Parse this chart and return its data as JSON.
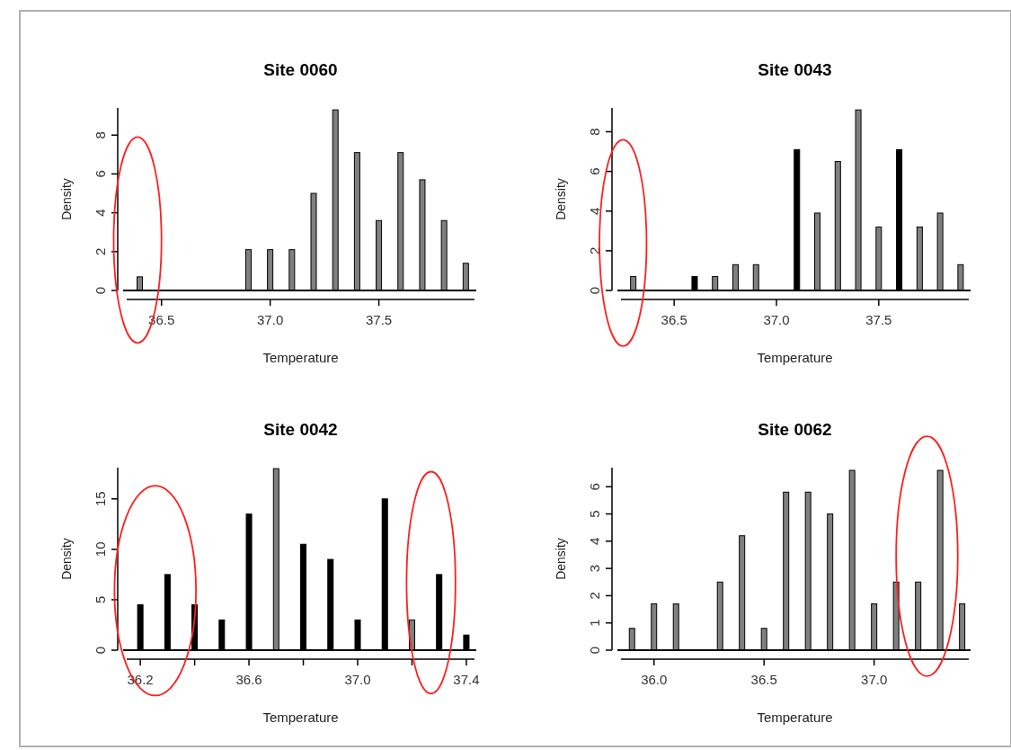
{
  "chart_data": [
    {
      "type": "bar",
      "title": "Site 0060",
      "xlabel": "Temperature",
      "ylabel": "Density",
      "x": [
        36.4,
        36.9,
        37.0,
        37.1,
        37.2,
        37.3,
        37.4,
        37.5,
        37.6,
        37.7,
        37.8,
        37.9
      ],
      "values": [
        0.7,
        2.1,
        2.1,
        2.1,
        5.0,
        9.3,
        7.1,
        3.6,
        7.1,
        5.7,
        3.6,
        1.4
      ],
      "color": "#808080",
      "xlim": [
        36.34,
        37.94
      ],
      "xticks": [
        {
          "value": 36.5,
          "label": "36.5"
        },
        {
          "value": 37.0,
          "label": "37.0"
        },
        {
          "value": 37.5,
          "label": "37.5"
        }
      ],
      "ylim": [
        0,
        9.4
      ],
      "yticks": [
        0,
        2,
        4,
        6,
        8
      ]
    },
    {
      "type": "bar",
      "title": "Site 0043",
      "xlabel": "Temperature",
      "ylabel": "Density",
      "x": [
        36.3,
        36.6,
        36.7,
        36.8,
        36.9,
        37.1,
        37.2,
        37.3,
        37.4,
        37.5,
        37.6,
        37.7,
        37.8,
        37.9
      ],
      "values": [
        0.7,
        0.7,
        0.7,
        1.3,
        1.3,
        7.1,
        3.9,
        6.5,
        9.1,
        3.2,
        7.1,
        3.2,
        3.9,
        1.3
      ],
      "colors": [
        "#808080",
        "#000000",
        "#808080",
        "#808080",
        "#808080",
        "#000000",
        "#808080",
        "#808080",
        "#808080",
        "#808080",
        "#000000",
        "#808080",
        "#808080",
        "#808080"
      ],
      "xlim": [
        36.24,
        37.94
      ],
      "xticks": [
        {
          "value": 36.5,
          "label": "36.5"
        },
        {
          "value": 37.0,
          "label": "37.0"
        },
        {
          "value": 37.5,
          "label": "37.5"
        }
      ],
      "ylim": [
        0,
        9.2
      ],
      "yticks": [
        0,
        2,
        4,
        6,
        8
      ]
    },
    {
      "type": "bar",
      "title": "Site 0042",
      "xlabel": "Temperature",
      "ylabel": "Density",
      "x": [
        36.2,
        36.3,
        36.4,
        36.5,
        36.6,
        36.7,
        36.8,
        36.9,
        37.0,
        37.1,
        37.2,
        37.3,
        37.4
      ],
      "values": [
        4.5,
        7.5,
        4.5,
        3.0,
        13.5,
        18.0,
        10.5,
        9.0,
        3.0,
        15.0,
        3.0,
        7.5,
        1.5
      ],
      "colors": [
        "#000000",
        "#000000",
        "#000000",
        "#000000",
        "#000000",
        "#808080",
        "#000000",
        "#000000",
        "#000000",
        "#000000",
        "#808080",
        "#000000",
        "#000000"
      ],
      "xlim": [
        36.15,
        37.43
      ],
      "xticks": [
        {
          "value": 36.2,
          "label": "36.2"
        },
        {
          "value": 36.4,
          "label": null
        },
        {
          "value": 36.6,
          "label": "36.6"
        },
        {
          "value": 36.8,
          "label": null
        },
        {
          "value": 37.0,
          "label": "37.0"
        },
        {
          "value": 37.2,
          "label": null
        },
        {
          "value": 37.4,
          "label": "37.4"
        }
      ],
      "ylim": [
        0,
        18.1
      ],
      "yticks": [
        0,
        5,
        10,
        15
      ]
    },
    {
      "type": "bar",
      "title": "Site 0062",
      "xlabel": "Temperature",
      "ylabel": "Density",
      "x": [
        35.9,
        36.0,
        36.1,
        36.3,
        36.4,
        36.5,
        36.6,
        36.7,
        36.8,
        36.9,
        37.0,
        37.1,
        37.2,
        37.3,
        37.4
      ],
      "values": [
        0.8,
        1.7,
        1.7,
        2.5,
        4.2,
        0.8,
        5.8,
        5.8,
        5.0,
        6.6,
        1.7,
        2.5,
        2.5,
        6.6,
        1.7
      ],
      "color": "#808080",
      "xlim": [
        35.85,
        37.43
      ],
      "xticks": [
        {
          "value": 36.0,
          "label": "36.0"
        },
        {
          "value": 36.5,
          "label": "36.5"
        },
        {
          "value": 37.0,
          "label": "37.0"
        }
      ],
      "ylim": [
        0,
        6.7
      ],
      "yticks": [
        0,
        1,
        2,
        3,
        4,
        5,
        6
      ]
    }
  ]
}
